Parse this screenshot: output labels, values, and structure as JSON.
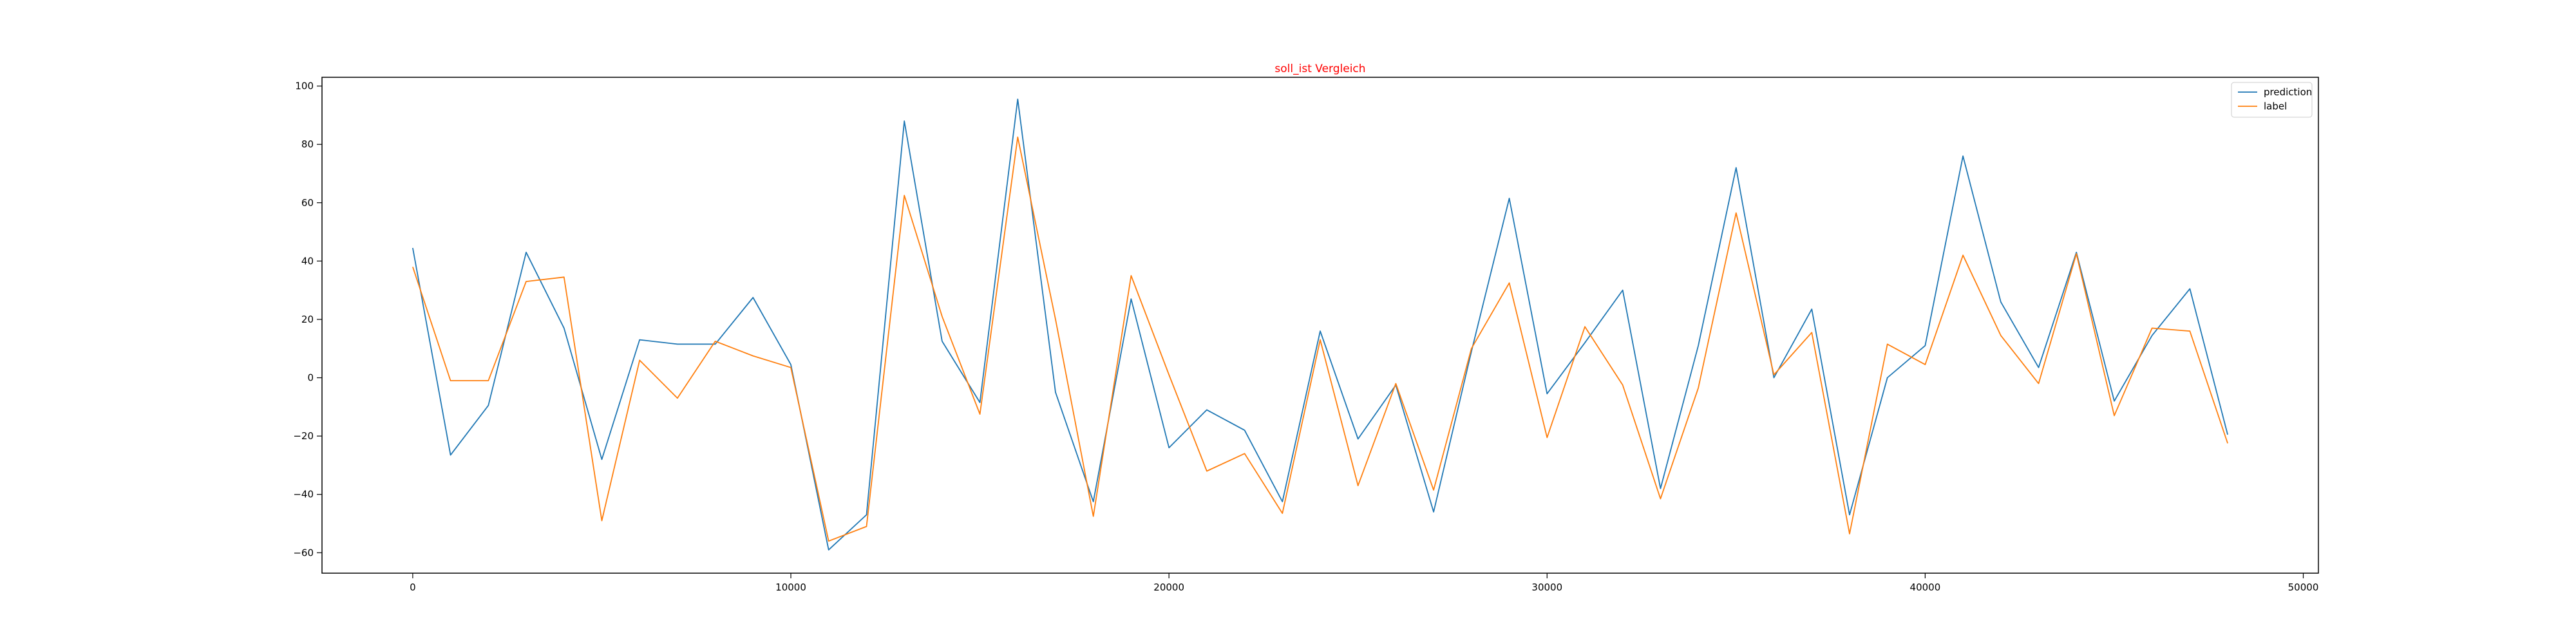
{
  "chart_data": {
    "type": "line",
    "title": "soll_ist Vergleich",
    "title_color": "#ff0000",
    "xlabel": "",
    "ylabel": "",
    "xlim": [
      -2400,
      50400
    ],
    "ylim": [
      -67,
      103
    ],
    "xticks": [
      0,
      10000,
      20000,
      30000,
      40000,
      50000
    ],
    "yticks": [
      -60,
      -40,
      -20,
      0,
      20,
      40,
      60,
      80,
      100
    ],
    "grid": false,
    "legend_position": "top-right",
    "x": [
      0,
      1000,
      2000,
      3000,
      4000,
      5000,
      6000,
      7000,
      8000,
      9000,
      10000,
      11000,
      12000,
      13000,
      14000,
      15000,
      16000,
      17000,
      18000,
      19000,
      20000,
      21000,
      22000,
      23000,
      24000,
      25000,
      26000,
      27000,
      28000,
      29000,
      30000,
      31000,
      32000,
      33000,
      34000,
      35000,
      36000,
      37000,
      38000,
      39000,
      40000,
      41000,
      42000,
      43000,
      44000,
      45000,
      46000,
      47000,
      48000
    ],
    "series": [
      {
        "name": "prediction",
        "color": "#1f77b4",
        "values": [
          44.5,
          -26.5,
          -9.5,
          43,
          17,
          -28,
          13,
          11.5,
          11.5,
          27.5,
          4.5,
          -59,
          -47,
          88,
          12.5,
          -8.5,
          95.5,
          -5,
          -42.5,
          27,
          -24,
          -11,
          -18,
          -42.5,
          16,
          -21,
          -2.5,
          -46,
          9,
          61.5,
          -5.5,
          12,
          30,
          -38,
          11,
          72,
          0,
          23.5,
          -47,
          0,
          11,
          76,
          26,
          3.5,
          43,
          -8,
          14.5,
          30.5,
          -19.5
        ]
      },
      {
        "name": "label",
        "color": "#ff7f0e",
        "values": [
          38,
          -1,
          -1,
          33,
          34.5,
          -49,
          6,
          -7,
          12.5,
          7.5,
          3.5,
          -56,
          -51,
          62.5,
          21,
          -12.5,
          82.5,
          20,
          -47.5,
          35,
          1,
          -32,
          -26,
          -46.5,
          13,
          -37,
          -2,
          -38.5,
          10,
          32.5,
          -20.5,
          17.5,
          -2.5,
          -41.5,
          -3.5,
          56.5,
          1,
          15.5,
          -53.5,
          11.5,
          4.5,
          42,
          14.5,
          -2,
          42.5,
          -13,
          17,
          16,
          -22.5
        ]
      }
    ]
  }
}
